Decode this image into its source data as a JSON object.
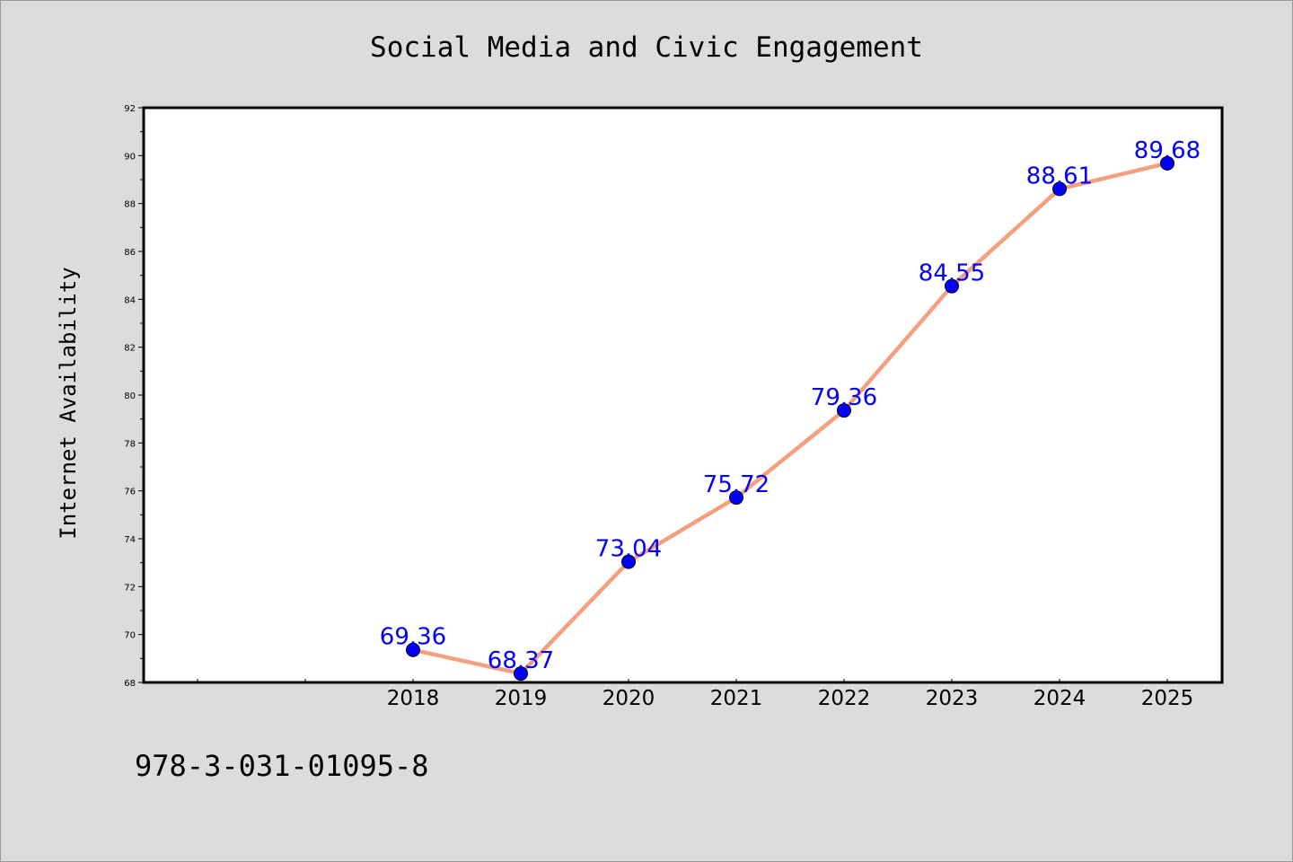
{
  "chart_data": {
    "type": "line",
    "title": "Social Media and Civic Engagement",
    "xlabel": "",
    "ylabel": "Internet Availability",
    "categories": [
      "2018",
      "2019",
      "2020",
      "2021",
      "2022",
      "2023",
      "2024",
      "2025"
    ],
    "series": [
      {
        "values": [
          69.36,
          68.37,
          73.04,
          75.72,
          79.36,
          84.55,
          88.61,
          89.68
        ],
        "labels": [
          "69.36",
          "68.37",
          "73.04",
          "75.72",
          "79.36",
          "84.55",
          "88.61",
          "89.68"
        ]
      }
    ],
    "ylim": [
      68,
      92
    ],
    "yticks": [
      68,
      70,
      72,
      74,
      76,
      78,
      80,
      82,
      84,
      86,
      88,
      90,
      92
    ],
    "ytick_labels": [
      "68",
      "70",
      "72",
      "74",
      "76",
      "78",
      "80",
      "82",
      "84",
      "86",
      "88",
      "90",
      "92"
    ],
    "grid": false,
    "legend": "none",
    "colors": {
      "line": "#f4a07e",
      "marker": "#0000ff",
      "label": "#0000ff",
      "background": "#dcdcdc",
      "plot_background": "#ffffff"
    }
  },
  "footer": {
    "text": "978-3-031-01095-8"
  }
}
